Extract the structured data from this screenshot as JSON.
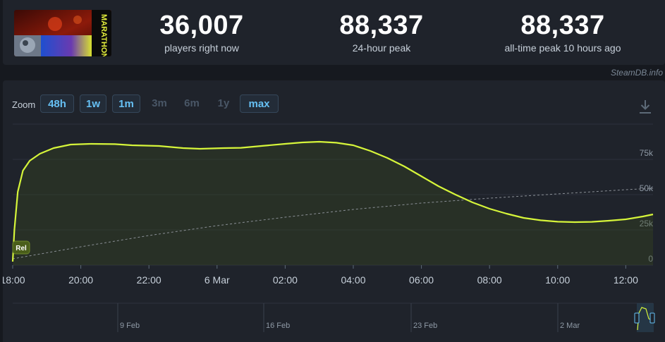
{
  "header": {
    "logo_text": "MARATHON",
    "stats": [
      {
        "value": "36,007",
        "label": "players right now"
      },
      {
        "value": "88,337",
        "label": "24-hour peak"
      },
      {
        "value": "88,337",
        "label": "all-time peak 10 hours ago"
      }
    ],
    "credit": "SteamDB.info"
  },
  "zoom": {
    "label": "Zoom",
    "buttons": [
      {
        "label": "48h",
        "enabled": true
      },
      {
        "label": "1w",
        "enabled": true
      },
      {
        "label": "1m",
        "enabled": true
      },
      {
        "label": "3m",
        "enabled": false
      },
      {
        "label": "6m",
        "enabled": false
      },
      {
        "label": "1y",
        "enabled": false
      },
      {
        "label": "max",
        "enabled": true
      }
    ]
  },
  "colors": {
    "line": "#d6f53a",
    "trend": "#8a8f96",
    "grid": "#2c323c",
    "accent": "#66c0f4",
    "rel_badge": "#4a5e1a"
  },
  "chart_data": {
    "type": "line",
    "title": "",
    "xlabel": "",
    "ylabel": "",
    "ylim": [
      0,
      100000
    ],
    "y_ticks": [
      0,
      25000,
      50000,
      75000
    ],
    "y_tick_labels": [
      "0",
      "25k",
      "50k",
      "75k"
    ],
    "x_ticks": [
      {
        "t": 0,
        "label": "18:00"
      },
      {
        "t": 2,
        "label": "20:00"
      },
      {
        "t": 4,
        "label": "22:00"
      },
      {
        "t": 6,
        "label": "6 Mar"
      },
      {
        "t": 8,
        "label": "02:00"
      },
      {
        "t": 10,
        "label": "04:00"
      },
      {
        "t": 12,
        "label": "06:00"
      },
      {
        "t": 14,
        "label": "08:00"
      },
      {
        "t": 16,
        "label": "10:00"
      },
      {
        "t": 18,
        "label": "12:00"
      }
    ],
    "x_end": 18.8,
    "series": [
      {
        "name": "Players",
        "points": [
          [
            0,
            2500
          ],
          [
            0.05,
            25000
          ],
          [
            0.15,
            52000
          ],
          [
            0.3,
            67000
          ],
          [
            0.5,
            74000
          ],
          [
            0.8,
            79000
          ],
          [
            1.2,
            83000
          ],
          [
            1.7,
            85500
          ],
          [
            2.3,
            86000
          ],
          [
            3.0,
            85800
          ],
          [
            3.5,
            85000
          ],
          [
            4.3,
            84500
          ],
          [
            5.0,
            83000
          ],
          [
            5.5,
            82500
          ],
          [
            6.2,
            83000
          ],
          [
            6.7,
            83200
          ],
          [
            7.3,
            84500
          ],
          [
            8.0,
            86000
          ],
          [
            8.5,
            87000
          ],
          [
            9.0,
            87500
          ],
          [
            9.5,
            86800
          ],
          [
            10.0,
            85000
          ],
          [
            10.5,
            81000
          ],
          [
            11.0,
            76000
          ],
          [
            11.5,
            70000
          ],
          [
            12.0,
            63000
          ],
          [
            12.5,
            56000
          ],
          [
            13.0,
            50000
          ],
          [
            13.5,
            44500
          ],
          [
            14.0,
            40000
          ],
          [
            14.5,
            36500
          ],
          [
            15.0,
            33500
          ],
          [
            15.5,
            31800
          ],
          [
            16.0,
            30800
          ],
          [
            16.5,
            30500
          ],
          [
            17.0,
            30700
          ],
          [
            17.5,
            31500
          ],
          [
            18.0,
            32500
          ],
          [
            18.5,
            34500
          ],
          [
            18.8,
            36007
          ]
        ]
      },
      {
        "name": "Trend",
        "points": [
          [
            0,
            4500
          ],
          [
            2,
            13000
          ],
          [
            4,
            21000
          ],
          [
            6,
            28000
          ],
          [
            8,
            34000
          ],
          [
            10,
            39500
          ],
          [
            12,
            44000
          ],
          [
            14,
            47500
          ],
          [
            16,
            50500
          ],
          [
            18,
            53500
          ],
          [
            18.8,
            54500
          ]
        ]
      }
    ],
    "rel_badge": "Rel",
    "navigator": {
      "labels": [
        "9 Feb",
        "16 Feb",
        "23 Feb",
        "2 Mar"
      ]
    }
  }
}
